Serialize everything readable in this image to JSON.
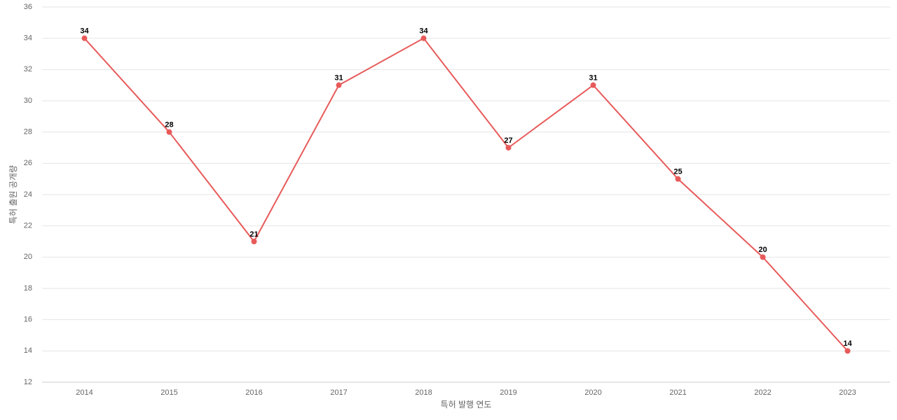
{
  "chart_data": {
    "type": "line",
    "x_label": "특허 발행 연도",
    "y_label": "특허 출원 공개량",
    "categories": [
      "2014",
      "2015",
      "2016",
      "2017",
      "2018",
      "2019",
      "2020",
      "2021",
      "2022",
      "2023"
    ],
    "series": [
      {
        "color": "#e85a5a",
        "values": [
          34,
          28,
          21,
          31,
          34,
          27,
          31,
          25,
          20,
          14
        ]
      }
    ],
    "ylim": [
      12,
      36
    ],
    "yticks": [
      12,
      14,
      16,
      18,
      20,
      22,
      24,
      26,
      28,
      30,
      32,
      34,
      36
    ],
    "grid": true
  }
}
